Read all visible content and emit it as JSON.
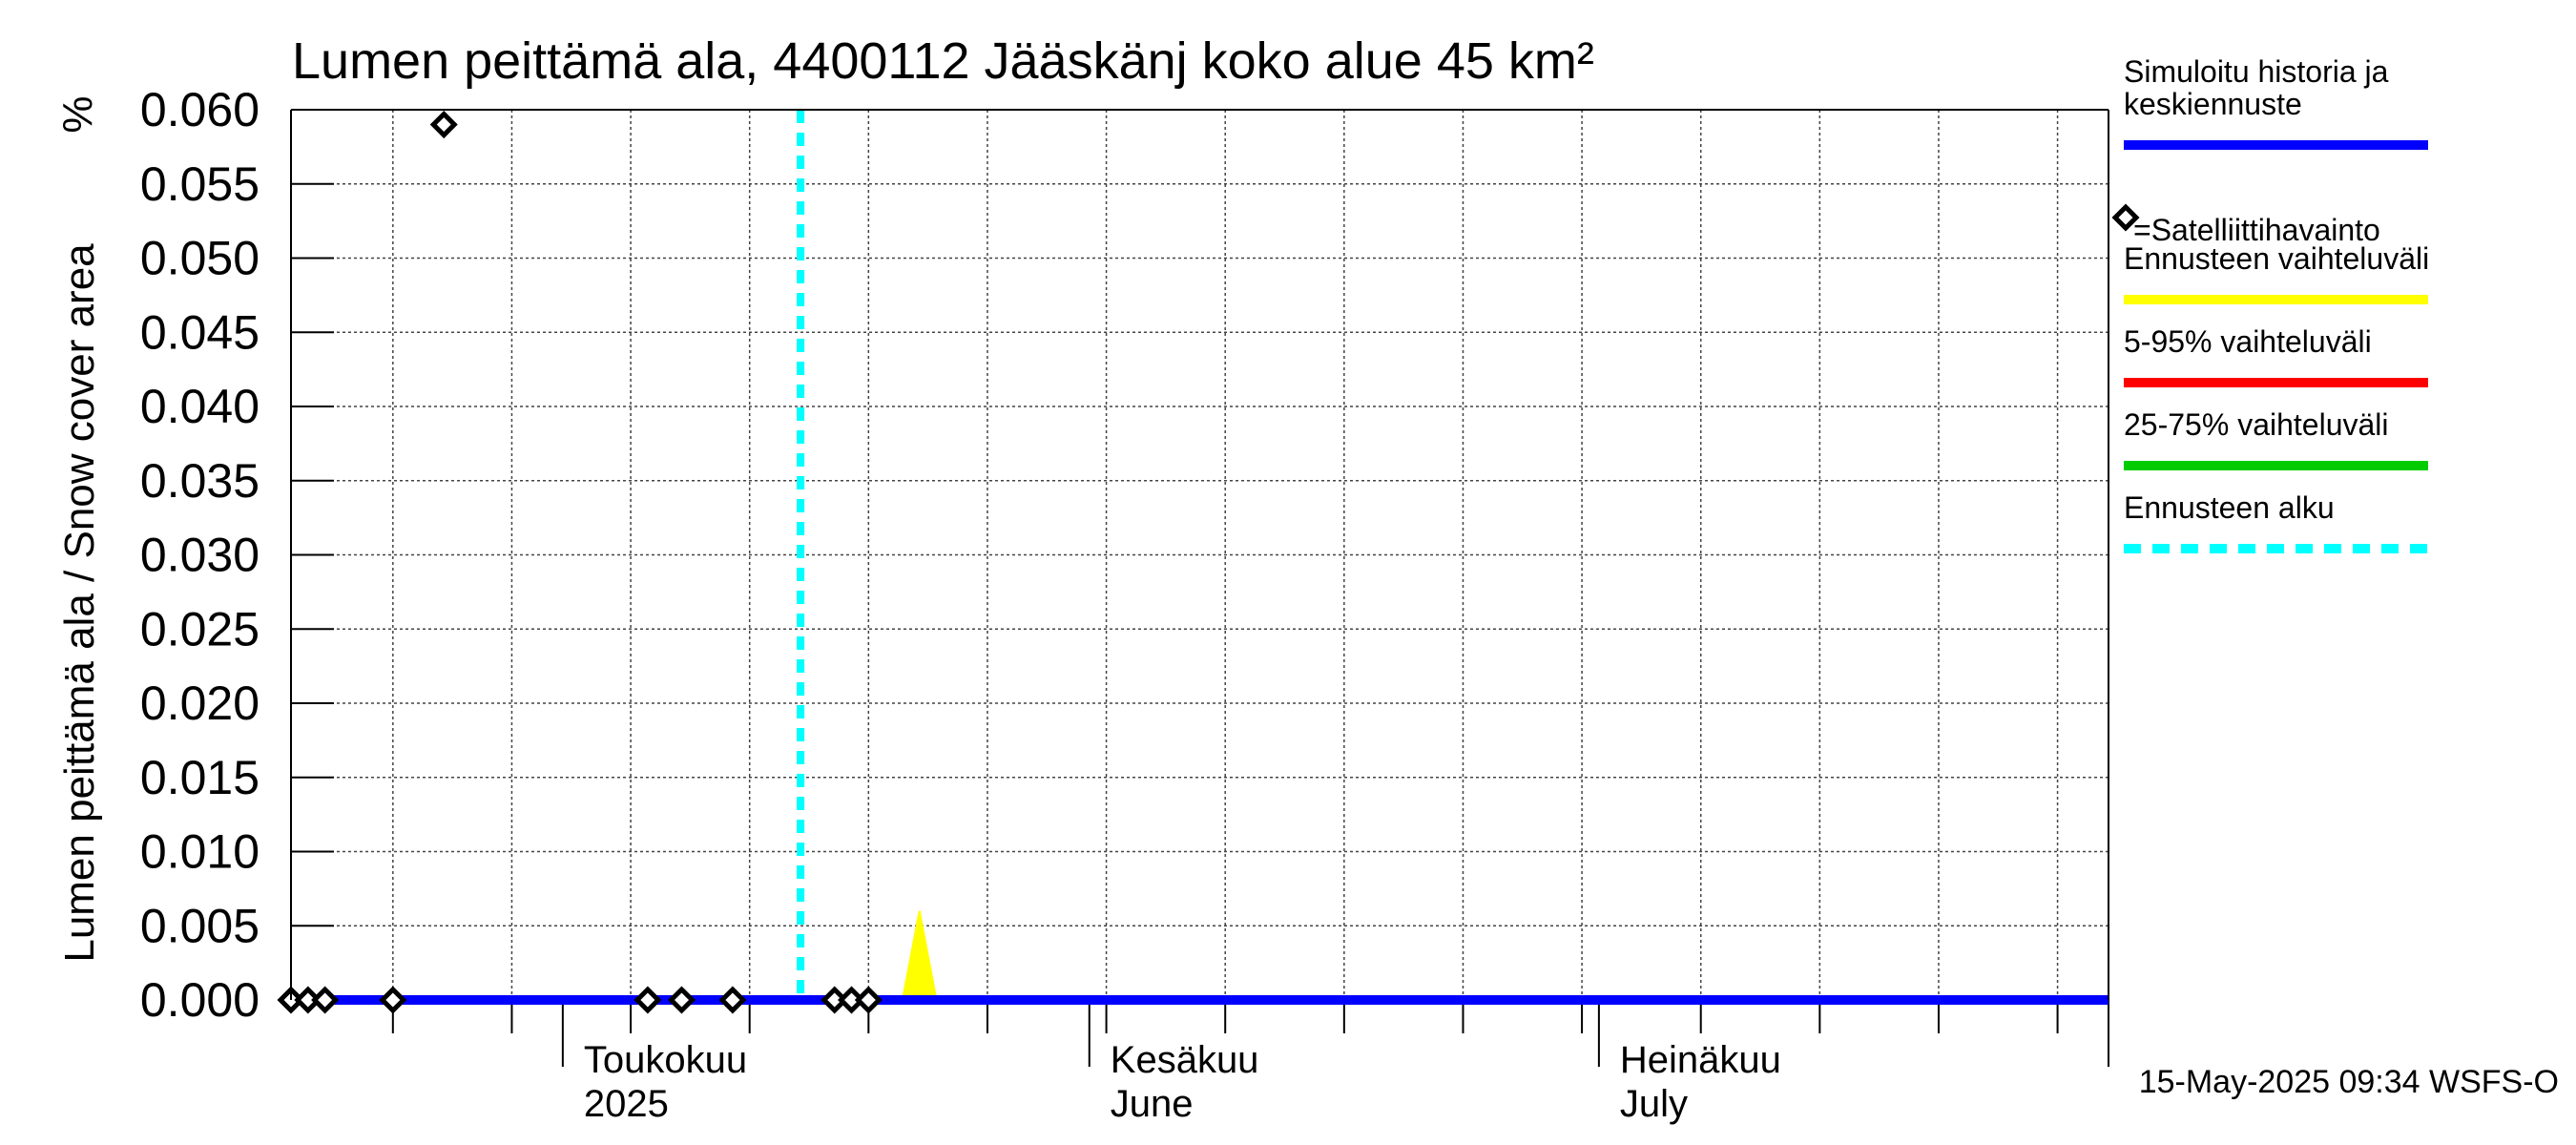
{
  "chart_data": {
    "type": "line",
    "title": "Lumen peittämä ala, 4400112 Jääskänj koko alue 45 km²",
    "ylabel": "Lumen peittämä ala / Snow cover area",
    "yunit": "%",
    "ylim": [
      0.0,
      0.06
    ],
    "yticks": [
      "0.000",
      "0.005",
      "0.010",
      "0.015",
      "0.020",
      "0.025",
      "0.030",
      "0.035",
      "0.040",
      "0.045",
      "0.050",
      "0.055",
      "0.060"
    ],
    "xlim": [
      "2025-04-15",
      "2025-07-31"
    ],
    "month_labels": [
      {
        "date": "2025-05-01",
        "line1": "Toukokuu",
        "line2": "2025"
      },
      {
        "date": "2025-06-01",
        "line1": "Kesäkuu",
        "line2": "June"
      },
      {
        "date": "2025-07-01",
        "line1": "Heinäkuu",
        "line2": "July"
      }
    ],
    "forecast_start": "2025-05-15",
    "simulated": {
      "name": "Simuloitu historia ja keskiennuste",
      "color": "#0000ff",
      "x": [
        "2025-04-15",
        "2025-07-31"
      ],
      "y": [
        0.0,
        0.0
      ]
    },
    "forecast_range": {
      "name": "Ennusteen vaihteluväli",
      "color": "#ffff00",
      "x": [
        "2025-05-21",
        "2025-05-22",
        "2025-05-23"
      ],
      "y": [
        0.0,
        0.006,
        0.0
      ]
    },
    "satellite": {
      "name": "=Satelliittihavainto",
      "x": [
        "2025-04-15",
        "2025-04-16",
        "2025-04-17",
        "2025-04-21",
        "2025-04-24",
        "2025-05-06",
        "2025-05-08",
        "2025-05-11",
        "2025-05-17",
        "2025-05-18",
        "2025-05-19"
      ],
      "y": [
        0.0,
        0.0,
        0.0,
        0.0,
        0.059,
        0.0,
        0.0,
        0.0,
        0.0,
        0.0,
        0.0
      ]
    },
    "legend": [
      {
        "key": "sim",
        "label_lines": [
          "Simuloitu historia ja",
          "keskiennuste"
        ],
        "color": "#0000ff",
        "style": "solid"
      },
      {
        "key": "sat",
        "label_lines": [
          "=Satelliittihavainto"
        ],
        "color": "#000000",
        "style": "diamond"
      },
      {
        "key": "range",
        "label_lines": [
          "Ennusteen vaihteluväli"
        ],
        "color": "#ffff00",
        "style": "solid"
      },
      {
        "key": "p5_95",
        "label_lines": [
          "5-95% vaihteluväli"
        ],
        "color": "#ff0000",
        "style": "solid"
      },
      {
        "key": "p25_75",
        "label_lines": [
          "25-75% vaihteluväli"
        ],
        "color": "#00cc00",
        "style": "solid"
      },
      {
        "key": "fstart",
        "label_lines": [
          "Ennusteen alku"
        ],
        "color": "#00ffff",
        "style": "dashed"
      }
    ],
    "legend_position": "right",
    "grid": true,
    "footer": "15-May-2025 09:34 WSFS-O"
  }
}
